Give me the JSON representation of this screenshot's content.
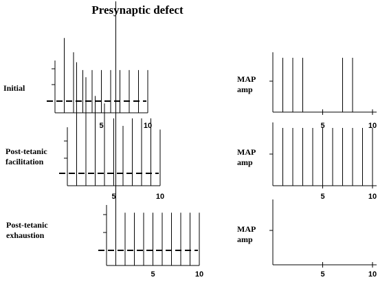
{
  "title": "Presynaptic defect",
  "rows": [
    {
      "label_lines": [
        "Initial"
      ],
      "map_lines": [
        "MAP",
        "amp"
      ]
    },
    {
      "label_lines": [
        "Post-tetanic",
        "facilitation"
      ],
      "map_lines": [
        "MAP",
        "amp"
      ]
    },
    {
      "label_lines": [
        "Post-tetanic",
        "exhaustion"
      ],
      "map_lines": [
        "MAP",
        "amp"
      ]
    }
  ],
  "tick_labels": [
    "5",
    "10"
  ],
  "chart_data": [
    {
      "type": "bar",
      "name": "Initial EPP",
      "x": [
        1,
        2,
        3,
        4,
        5,
        6,
        7,
        8,
        9,
        10
      ],
      "values": [
        2.1,
        1.7,
        1.2,
        1.2,
        1.2,
        1.2,
        1.2,
        1.2,
        1.2,
        1.2
      ],
      "threshold": 1,
      "xticks": [
        5,
        10
      ]
    },
    {
      "type": "bar",
      "name": "Initial MAP",
      "x": [
        1,
        2,
        3,
        4,
        5,
        6,
        7,
        8,
        9,
        10
      ],
      "values": [
        1,
        1,
        1,
        0,
        0,
        0,
        1,
        1,
        0,
        0
      ],
      "xticks": [
        5,
        10
      ]
    },
    {
      "type": "bar",
      "name": "Facilitation EPP",
      "x": [
        1,
        2,
        3,
        4,
        5,
        6,
        7,
        8,
        9,
        10
      ],
      "values": [
        3.3,
        2.9,
        2.4,
        2.2,
        1.8,
        1.6,
        1.8,
        1.8,
        1.8,
        1.5
      ],
      "threshold": 1,
      "xticks": [
        5,
        10
      ]
    },
    {
      "type": "bar",
      "name": "Facilitation MAP",
      "x": [
        1,
        2,
        3,
        4,
        5,
        6,
        7,
        8,
        9,
        10
      ],
      "values": [
        1,
        1,
        1,
        1,
        1,
        1,
        1,
        1,
        1,
        1
      ],
      "xticks": [
        5,
        10
      ]
    },
    {
      "type": "bar",
      "name": "Exhaustion EPP",
      "x": [
        1,
        2,
        3,
        4,
        5,
        6,
        7,
        8,
        9,
        10
      ],
      "values": [
        3,
        0.6,
        0.6,
        0.6,
        0.6,
        0.6,
        0.6,
        0.6,
        0.6,
        0.6
      ],
      "threshold": 1,
      "xticks": [
        5,
        10
      ]
    },
    {
      "type": "bar",
      "name": "Exhaustion MAP",
      "x": [
        1,
        2,
        3,
        4,
        5,
        6,
        7,
        8,
        9,
        10
      ],
      "values": [
        0,
        0,
        0,
        0,
        0,
        0,
        0,
        0,
        0,
        0
      ],
      "xticks": [
        5,
        10
      ]
    }
  ]
}
